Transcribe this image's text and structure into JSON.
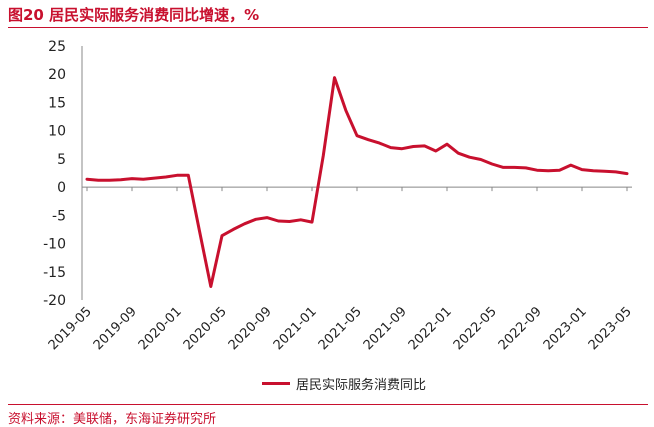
{
  "figure": {
    "title": "图20  居民实际服务消费同比增速，%",
    "source": "资料来源：美联储，东海证券研究所",
    "accent_color": "#c8102e"
  },
  "chart_data": {
    "type": "line",
    "title": "",
    "xlabel": "",
    "ylabel": "",
    "ylim": [
      -20,
      25
    ],
    "yticks": [
      25,
      20,
      15,
      10,
      5,
      0,
      -5,
      -10,
      -15,
      -20
    ],
    "x": [
      "2019-05",
      "2019-06",
      "2019-07",
      "2019-08",
      "2019-09",
      "2019-10",
      "2019-11",
      "2019-12",
      "2020-01",
      "2020-02",
      "2020-03",
      "2020-04",
      "2020-05",
      "2020-06",
      "2020-07",
      "2020-08",
      "2020-09",
      "2020-10",
      "2020-11",
      "2020-12",
      "2021-01",
      "2021-02",
      "2021-03",
      "2021-04",
      "2021-05",
      "2021-06",
      "2021-07",
      "2021-08",
      "2021-09",
      "2021-10",
      "2021-11",
      "2021-12",
      "2022-01",
      "2022-02",
      "2022-03",
      "2022-04",
      "2022-05",
      "2022-06",
      "2022-07",
      "2022-08",
      "2022-09",
      "2022-10",
      "2022-11",
      "2022-12",
      "2023-01",
      "2023-02",
      "2023-03",
      "2023-04",
      "2023-05"
    ],
    "xtick_labels": [
      "2019-05",
      "2019-09",
      "2020-01",
      "2020-05",
      "2020-09",
      "2021-01",
      "2021-05",
      "2021-09",
      "2022-01",
      "2022-05",
      "2022-09",
      "2023-01",
      "2023-05"
    ],
    "grid": false,
    "legend_position": "bottom",
    "series": [
      {
        "name": "居民实际服务消费同比",
        "color": "#c8102e",
        "values": [
          1.4,
          1.2,
          1.2,
          1.3,
          1.5,
          1.4,
          1.6,
          1.8,
          2.1,
          2.1,
          -7.8,
          -17.6,
          -8.6,
          -7.5,
          -6.5,
          -5.7,
          -5.4,
          -6.0,
          -6.1,
          -5.8,
          -6.2,
          5.6,
          19.4,
          13.6,
          9.1,
          8.4,
          7.8,
          7.0,
          6.8,
          7.2,
          7.3,
          6.4,
          7.6,
          6.0,
          5.3,
          4.9,
          4.1,
          3.5,
          3.5,
          3.4,
          3.0,
          2.9,
          3.0,
          3.9,
          3.1,
          2.9,
          2.8,
          2.7,
          2.4
        ]
      }
    ]
  }
}
